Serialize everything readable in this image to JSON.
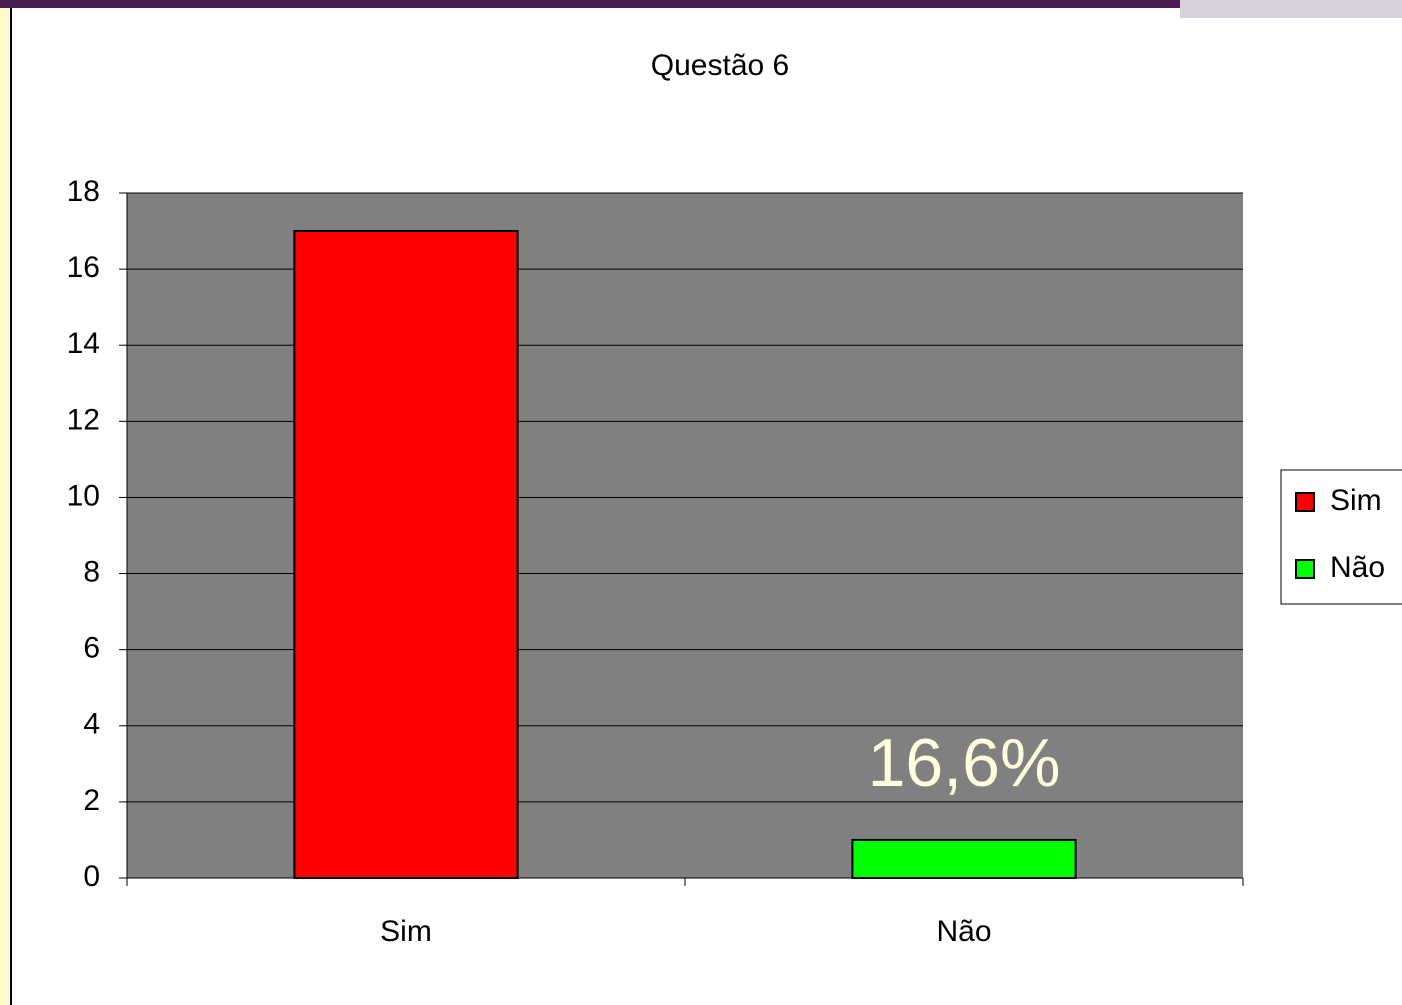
{
  "chart_data": {
    "type": "bar",
    "title": "Questão 6",
    "categories": [
      "Sim",
      "Não"
    ],
    "values": [
      17,
      1
    ],
    "colors": [
      "#ff0000",
      "#00ff00"
    ],
    "ylim": [
      0,
      18
    ],
    "yticks": [
      0,
      2,
      4,
      6,
      8,
      10,
      12,
      14,
      16,
      18
    ],
    "grid": true,
    "legend": "right",
    "annotations": [
      "16,6%"
    ]
  }
}
